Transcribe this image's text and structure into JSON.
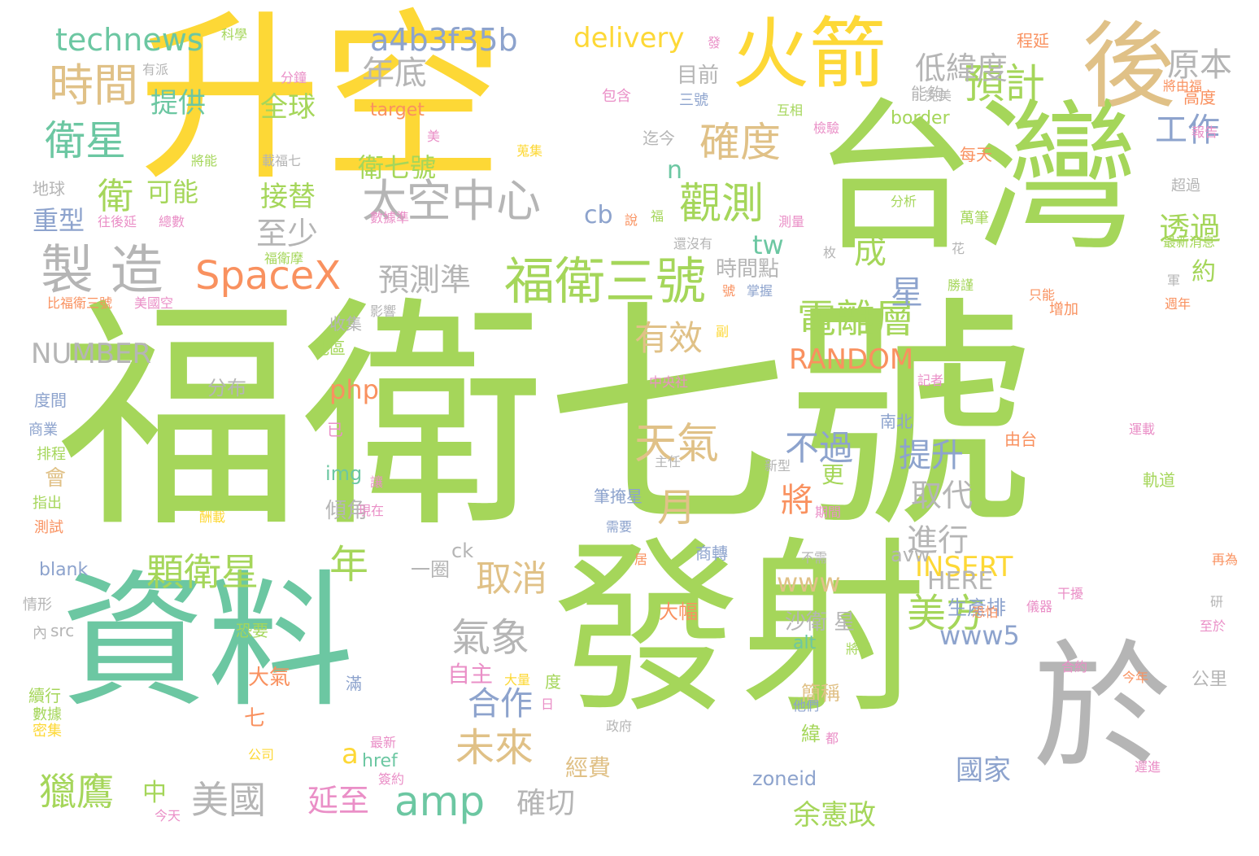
{
  "palette": {
    "green": "#a5d65a",
    "yellow": "#fdd836",
    "teal": "#6cc7a2",
    "tan": "#e0c187",
    "gray": "#b5b5b5",
    "orange": "#f9915f",
    "blue": "#8da3cd",
    "pink": "#ea8fc7"
  },
  "words": [
    {
      "text": "福衛七號",
      "color": "green",
      "weight": 100
    },
    {
      "text": "升空",
      "color": "yellow",
      "weight": 80
    },
    {
      "text": "發射",
      "color": "green",
      "weight": 78
    },
    {
      "text": "資料",
      "color": "teal",
      "weight": 70
    },
    {
      "text": "台灣",
      "color": "green",
      "weight": 68
    },
    {
      "text": "於",
      "color": "gray",
      "weight": 48
    },
    {
      "text": "後",
      "color": "tan",
      "weight": 35
    },
    {
      "text": "火箭",
      "color": "yellow",
      "weight": 30
    },
    {
      "text": "製 造",
      "color": "gray",
      "weight": 22
    },
    {
      "text": "福衛三號",
      "color": "green",
      "weight": 20
    },
    {
      "text": "時間",
      "color": "tan",
      "weight": 18
    },
    {
      "text": "衛星",
      "color": "teal",
      "weight": 18
    },
    {
      "text": "觀測",
      "color": "green",
      "weight": 17
    },
    {
      "text": "太空中心",
      "color": "gray",
      "weight": 16
    },
    {
      "text": "SpaceX",
      "color": "orange",
      "weight": 16
    },
    {
      "text": "確度",
      "color": "tan",
      "weight": 16
    },
    {
      "text": "預計",
      "color": "green",
      "weight": 16
    },
    {
      "text": "電離層",
      "color": "green",
      "weight": 15
    },
    {
      "text": "天氣",
      "color": "tan",
      "weight": 15
    },
    {
      "text": "顆衛星",
      "color": "green",
      "weight": 14
    },
    {
      "text": "氣象",
      "color": "gray",
      "weight": 14
    },
    {
      "text": "美方",
      "color": "green",
      "weight": 14
    },
    {
      "text": "未來",
      "color": "tan",
      "weight": 14
    },
    {
      "text": "獵鷹",
      "color": "green",
      "weight": 14
    },
    {
      "text": "美國",
      "color": "gray",
      "weight": 13
    },
    {
      "text": "amp",
      "color": "teal",
      "weight": 13
    },
    {
      "text": "年",
      "color": "green",
      "weight": 13
    },
    {
      "text": "月",
      "color": "tan",
      "weight": 13
    },
    {
      "text": "取消",
      "color": "tan",
      "weight": 12
    },
    {
      "text": "technews",
      "color": "teal",
      "weight": 11
    },
    {
      "text": "a4b3f35b",
      "color": "blue",
      "weight": 11
    },
    {
      "text": "delivery",
      "color": "yellow",
      "weight": 10
    },
    {
      "text": "年底",
      "color": "gray",
      "weight": 11
    },
    {
      "text": "低緯度",
      "color": "gray",
      "weight": 11
    },
    {
      "text": "原本",
      "color": "gray",
      "weight": 11
    },
    {
      "text": "衛",
      "color": "green",
      "weight": 12
    },
    {
      "text": "提供",
      "color": "teal",
      "weight": 10
    },
    {
      "text": "全球",
      "color": "green",
      "weight": 10
    },
    {
      "text": "工作",
      "color": "blue",
      "weight": 11
    },
    {
      "text": "可能",
      "color": "green",
      "weight": 10
    },
    {
      "text": "接替",
      "color": "green",
      "weight": 10
    },
    {
      "text": "衛七號",
      "color": "green",
      "weight": 10
    },
    {
      "text": "重型",
      "color": "blue",
      "weight": 10
    },
    {
      "text": "至少",
      "color": "gray",
      "weight": 11
    },
    {
      "text": "透過",
      "color": "green",
      "weight": 10
    },
    {
      "text": "成",
      "color": "green",
      "weight": 11
    },
    {
      "text": "預測準",
      "color": "gray",
      "weight": 10
    },
    {
      "text": "約",
      "color": "green",
      "weight": 10
    },
    {
      "text": "星",
      "color": "blue",
      "weight": 11
    },
    {
      "text": "NUMBER",
      "color": "gray",
      "weight": 10
    },
    {
      "text": "有效",
      "color": "tan",
      "weight": 11
    },
    {
      "text": "RANDOM",
      "color": "orange",
      "weight": 10
    },
    {
      "text": "php",
      "color": "orange",
      "weight": 10
    },
    {
      "text": "不過",
      "color": "blue",
      "weight": 11
    },
    {
      "text": "提升",
      "color": "blue",
      "weight": 11
    },
    {
      "text": "將",
      "color": "orange",
      "weight": 11
    },
    {
      "text": "取代",
      "color": "gray",
      "weight": 10
    },
    {
      "text": "進行",
      "color": "gray",
      "weight": 10
    },
    {
      "text": "INSERT",
      "color": "yellow",
      "weight": 10
    },
    {
      "text": "HERE",
      "color": "gray",
      "weight": 9
    },
    {
      "text": "www",
      "color": "tan",
      "weight": 9
    },
    {
      "text": "www5",
      "color": "blue",
      "weight": 9
    },
    {
      "text": "合作",
      "color": "blue",
      "weight": 10
    },
    {
      "text": "延至",
      "color": "pink",
      "weight": 10
    },
    {
      "text": "余憲政",
      "color": "green",
      "weight": 10
    },
    {
      "text": "國家",
      "color": "blue",
      "weight": 10
    },
    {
      "text": "確切",
      "color": "gray",
      "weight": 10
    },
    {
      "text": "目前",
      "color": "gray",
      "weight": 8
    },
    {
      "text": "時間點",
      "color": "gray",
      "weight": 8
    },
    {
      "text": "tw",
      "color": "teal",
      "weight": 8
    },
    {
      "text": "cb",
      "color": "blue",
      "weight": 9
    },
    {
      "text": "n",
      "color": "teal",
      "weight": 8
    },
    {
      "text": "更",
      "color": "green",
      "weight": 8
    },
    {
      "text": "a",
      "color": "yellow",
      "weight": 8
    },
    {
      "text": "中",
      "color": "green",
      "weight": 8
    },
    {
      "text": "經費",
      "color": "tan",
      "weight": 7
    },
    {
      "text": "自主",
      "color": "pink",
      "weight": 7
    },
    {
      "text": "沙衛 星",
      "color": "gray",
      "weight": 7
    },
    {
      "text": "生產排",
      "color": "blue",
      "weight": 7
    },
    {
      "text": "簡稱",
      "color": "tan",
      "weight": 7
    },
    {
      "text": "緯",
      "color": "green",
      "weight": 7
    },
    {
      "text": "zoneid",
      "color": "blue",
      "weight": 7
    },
    {
      "text": "一圈",
      "color": "gray",
      "weight": 7
    },
    {
      "text": "大幅",
      "color": "orange",
      "weight": 7
    },
    {
      "text": "大氣",
      "color": "orange",
      "weight": 7
    },
    {
      "text": "七",
      "color": "orange",
      "weight": 7
    },
    {
      "text": "會",
      "color": "tan",
      "weight": 7
    },
    {
      "text": "傾角",
      "color": "gray",
      "weight": 7
    },
    {
      "text": "img",
      "color": "teal",
      "weight": 7
    },
    {
      "text": "ck",
      "color": "gray",
      "weight": 7
    },
    {
      "text": "avw",
      "color": "gray",
      "weight": 7
    },
    {
      "text": "alt",
      "color": "teal",
      "weight": 7
    },
    {
      "text": "href",
      "color": "teal",
      "weight": 7
    },
    {
      "text": "blank",
      "color": "blue",
      "weight": 7
    },
    {
      "text": "src",
      "color": "gray",
      "weight": 6
    },
    {
      "text": "border",
      "color": "green",
      "weight": 7
    },
    {
      "text": "target",
      "color": "orange",
      "weight": 7
    },
    {
      "text": "分布",
      "color": "gray",
      "weight": 7
    },
    {
      "text": "地區",
      "color": "green",
      "weight": 6
    },
    {
      "text": "收集",
      "color": "gray",
      "weight": 6
    },
    {
      "text": "地球",
      "color": "gray",
      "weight": 6
    },
    {
      "text": "度間",
      "color": "blue",
      "weight": 6
    },
    {
      "text": "商業",
      "color": "blue",
      "weight": 6
    },
    {
      "text": "排程",
      "color": "green",
      "weight": 6
    },
    {
      "text": "指出",
      "color": "green",
      "weight": 6
    },
    {
      "text": "測試",
      "color": "orange",
      "weight": 6
    },
    {
      "text": "情形",
      "color": "gray",
      "weight": 6
    },
    {
      "text": "內",
      "color": "gray",
      "weight": 6
    },
    {
      "text": "續行",
      "color": "green",
      "weight": 6
    },
    {
      "text": "數據",
      "color": "green",
      "weight": 6
    },
    {
      "text": "密集",
      "color": "yellow",
      "weight": 6
    },
    {
      "text": "科學",
      "color": "green",
      "weight": 5
    },
    {
      "text": "分鐘",
      "color": "pink",
      "weight": 5
    },
    {
      "text": "有派",
      "color": "gray",
      "weight": 5
    },
    {
      "text": "包含",
      "color": "pink",
      "weight": 5
    },
    {
      "text": "將能",
      "color": "green",
      "weight": 5
    },
    {
      "text": "載福七",
      "color": "gray",
      "weight": 5
    },
    {
      "text": "總數",
      "color": "pink",
      "weight": 5
    },
    {
      "text": "往後延",
      "color": "pink",
      "weight": 5
    },
    {
      "text": "福衛摩",
      "color": "green",
      "weight": 5
    },
    {
      "text": "比福衛三號",
      "color": "orange",
      "weight": 5
    },
    {
      "text": "美國空",
      "color": "pink",
      "weight": 5
    },
    {
      "text": "影響",
      "color": "gray",
      "weight": 5
    },
    {
      "text": "數據準",
      "color": "pink",
      "weight": 5
    },
    {
      "text": "還沒有",
      "color": "gray",
      "weight": 5
    },
    {
      "text": "號",
      "color": "orange",
      "weight": 5
    },
    {
      "text": "掌握",
      "color": "blue",
      "weight": 5
    },
    {
      "text": "副",
      "color": "yellow",
      "weight": 5
    },
    {
      "text": "中央社",
      "color": "pink",
      "weight": 5
    },
    {
      "text": "記者",
      "color": "pink",
      "weight": 5
    },
    {
      "text": "已",
      "color": "pink",
      "weight": 5
    },
    {
      "text": "南北",
      "color": "blue",
      "weight": 6
    },
    {
      "text": "由台",
      "color": "orange",
      "weight": 6
    },
    {
      "text": "運載",
      "color": "pink",
      "weight": 5
    },
    {
      "text": "軌道",
      "color": "green",
      "weight": 6
    },
    {
      "text": "研",
      "color": "gray",
      "weight": 5
    },
    {
      "text": "至於",
      "color": "pink",
      "weight": 5
    },
    {
      "text": "儀器",
      "color": "pink",
      "weight": 5
    },
    {
      "text": "干擾",
      "color": "pink",
      "weight": 5
    },
    {
      "text": "恐怕",
      "color": "orange",
      "weight": 5
    },
    {
      "text": "合約",
      "color": "pink",
      "weight": 5
    },
    {
      "text": "今年",
      "color": "orange",
      "weight": 5
    },
    {
      "text": "公里",
      "color": "gray",
      "weight": 7
    },
    {
      "text": "再為",
      "color": "orange",
      "weight": 5
    },
    {
      "text": "遲進",
      "color": "pink",
      "weight": 5
    },
    {
      "text": "都",
      "color": "pink",
      "weight": 5
    },
    {
      "text": "他們",
      "color": "blue",
      "weight": 5
    },
    {
      "text": "將以",
      "color": "green",
      "weight": 5
    },
    {
      "text": "恐要",
      "color": "green",
      "weight": 6
    },
    {
      "text": "滿",
      "color": "blue",
      "weight": 6
    },
    {
      "text": "度",
      "color": "green",
      "weight": 6
    },
    {
      "text": "日",
      "color": "pink",
      "weight": 5
    },
    {
      "text": "大量",
      "color": "yellow",
      "weight": 5
    },
    {
      "text": "政府",
      "color": "gray",
      "weight": 5
    },
    {
      "text": "最新",
      "color": "pink",
      "weight": 5
    },
    {
      "text": "簽約",
      "color": "pink",
      "weight": 5
    },
    {
      "text": "公司",
      "color": "yellow",
      "weight": 5
    },
    {
      "text": "今天",
      "color": "pink",
      "weight": 5
    },
    {
      "text": "居",
      "color": "orange",
      "weight": 5
    },
    {
      "text": "商轉",
      "color": "blue",
      "weight": 6
    },
    {
      "text": "需要",
      "color": "blue",
      "weight": 5
    },
    {
      "text": "不需",
      "color": "gray",
      "weight": 5
    },
    {
      "text": "酬載",
      "color": "yellow",
      "weight": 5
    },
    {
      "text": "期間",
      "color": "pink",
      "weight": 5
    },
    {
      "text": "現在",
      "color": "pink",
      "weight": 5
    },
    {
      "text": "讓",
      "color": "pink",
      "weight": 5
    },
    {
      "text": "新型",
      "color": "gray",
      "weight": 5
    },
    {
      "text": "主任",
      "color": "gray",
      "weight": 5
    },
    {
      "text": "筆掩星",
      "color": "blue",
      "weight": 6
    },
    {
      "text": "程延",
      "color": "orange",
      "weight": 6
    },
    {
      "text": "將由福",
      "color": "orange",
      "weight": 5
    },
    {
      "text": "高度",
      "color": "orange",
      "weight": 6
    },
    {
      "text": "完美",
      "color": "gray",
      "weight": 5
    },
    {
      "text": "能夠",
      "color": "gray",
      "weight": 6
    },
    {
      "text": "每天",
      "color": "orange",
      "weight": 6
    },
    {
      "text": "報告",
      "color": "pink",
      "weight": 5
    },
    {
      "text": "超過",
      "color": "gray",
      "weight": 6
    },
    {
      "text": "萬筆",
      "color": "green",
      "weight": 6
    },
    {
      "text": "最新消息",
      "color": "green",
      "weight": 5
    },
    {
      "text": "花",
      "color": "gray",
      "weight": 5
    },
    {
      "text": "軍",
      "color": "gray",
      "weight": 5
    },
    {
      "text": "勝謹",
      "color": "green",
      "weight": 5
    },
    {
      "text": "只能",
      "color": "orange",
      "weight": 5
    },
    {
      "text": "週年",
      "color": "orange",
      "weight": 5
    },
    {
      "text": "增加",
      "color": "orange",
      "weight": 6
    },
    {
      "text": "枚",
      "color": "gray",
      "weight": 5
    },
    {
      "text": "分析",
      "color": "green",
      "weight": 5
    },
    {
      "text": "測量",
      "color": "pink",
      "weight": 5
    },
    {
      "text": "檢驗",
      "color": "pink",
      "weight": 5
    },
    {
      "text": "互相",
      "color": "green",
      "weight": 5
    },
    {
      "text": "迄今",
      "color": "gray",
      "weight": 6
    },
    {
      "text": "三號",
      "color": "blue",
      "weight": 6
    },
    {
      "text": "福",
      "color": "green",
      "weight": 5
    },
    {
      "text": "說",
      "color": "orange",
      "weight": 5
    },
    {
      "text": "蒐集",
      "color": "yellow",
      "weight": 5
    },
    {
      "text": "美",
      "color": "pink",
      "weight": 5
    },
    {
      "text": "發",
      "color": "pink",
      "weight": 5
    }
  ]
}
